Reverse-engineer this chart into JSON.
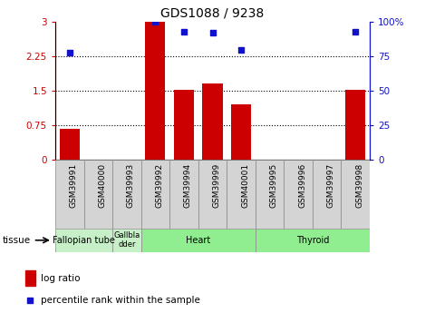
{
  "title": "GDS1088 / 9238",
  "samples": [
    "GSM39991",
    "GSM40000",
    "GSM39993",
    "GSM39992",
    "GSM39994",
    "GSM39999",
    "GSM40001",
    "GSM39995",
    "GSM39996",
    "GSM39997",
    "GSM39998"
  ],
  "log_ratio": [
    0.68,
    0.0,
    0.0,
    3.0,
    1.52,
    1.65,
    1.2,
    0.0,
    0.0,
    0.0,
    1.52
  ],
  "percentile_rank": [
    78,
    null,
    null,
    100,
    93,
    92,
    80,
    null,
    null,
    null,
    93
  ],
  "bar_color": "#cc0000",
  "dot_color": "#1111cc",
  "ylim_left": [
    0,
    3
  ],
  "ylim_right": [
    0,
    100
  ],
  "yticks_left": [
    0,
    0.75,
    1.5,
    2.25,
    3
  ],
  "yticks_right": [
    0,
    25,
    50,
    75,
    100
  ],
  "ytick_labels_left": [
    "0",
    "0.75",
    "1.5",
    "2.25",
    "3"
  ],
  "ytick_labels_right": [
    "0",
    "25",
    "50",
    "75",
    "100%"
  ],
  "tissue_groups": [
    {
      "label": "Fallopian tube",
      "start": 0,
      "end": 2,
      "color": "#c8f0c8"
    },
    {
      "label": "Gallbla\ndder",
      "start": 2,
      "end": 3,
      "color": "#c8f0c8"
    },
    {
      "label": "Heart",
      "start": 3,
      "end": 7,
      "color": "#90ee90"
    },
    {
      "label": "Thyroid",
      "start": 7,
      "end": 11,
      "color": "#90ee90"
    }
  ],
  "legend_bar_label": "log ratio",
  "legend_dot_label": "percentile rank within the sample",
  "bar_width": 0.7,
  "left_axis_color": "#cc0000",
  "right_axis_color": "#1111cc",
  "box_color": "#d4d4d4",
  "box_edge_color": "#888888",
  "bg_color": "#ffffff"
}
